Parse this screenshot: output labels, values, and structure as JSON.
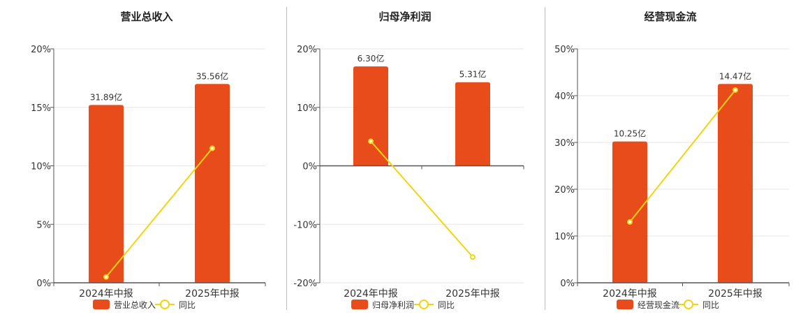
{
  "colors": {
    "bar": "#e84c1a",
    "line": "#f2d40f",
    "marker_fill": "#ffffff",
    "axis": "#555555",
    "grid": "#e6e6ee",
    "text": "#333333"
  },
  "chart_data": [
    {
      "type": "bar",
      "title": "营业总收入",
      "categories": [
        "2024年中报",
        "2025年中报"
      ],
      "ylim": [
        0,
        20
      ],
      "yticks": [
        0,
        5,
        10,
        15,
        20
      ],
      "ytick_labels": [
        "0%",
        "5%",
        "10%",
        "15%",
        "20%"
      ],
      "series": [
        {
          "name": "营业总收入",
          "type": "bar",
          "values": [
            15.2,
            17.0
          ],
          "labels": [
            "31.89亿",
            "35.56亿"
          ]
        },
        {
          "name": "同比",
          "type": "line",
          "values": [
            0.5,
            11.5
          ]
        }
      ],
      "legend": "bottom",
      "grid": true
    },
    {
      "type": "bar",
      "title": "归母净利润",
      "categories": [
        "2024年中报",
        "2025年中报"
      ],
      "ylim": [
        -20,
        20
      ],
      "yticks": [
        -20,
        -10,
        0,
        10,
        20
      ],
      "ytick_labels": [
        "-20%",
        "-10%",
        "0%",
        "10%",
        "20%"
      ],
      "series": [
        {
          "name": "归母净利润",
          "type": "bar",
          "values": [
            17.0,
            14.3
          ],
          "labels": [
            "6.30亿",
            "5.31亿"
          ]
        },
        {
          "name": "同比",
          "type": "line",
          "values": [
            4.2,
            -15.6
          ]
        }
      ],
      "legend": "bottom",
      "grid": true
    },
    {
      "type": "bar",
      "title": "经营现金流",
      "categories": [
        "2024年中报",
        "2025年中报"
      ],
      "ylim": [
        0,
        50
      ],
      "yticks": [
        0,
        10,
        20,
        30,
        40,
        50
      ],
      "ytick_labels": [
        "0%",
        "10%",
        "20%",
        "30%",
        "40%",
        "50%"
      ],
      "series": [
        {
          "name": "经营现金流",
          "type": "bar",
          "values": [
            30.2,
            42.5
          ],
          "labels": [
            "10.25亿",
            "14.47亿"
          ]
        },
        {
          "name": "同比",
          "type": "line",
          "values": [
            13.0,
            41.2
          ]
        }
      ],
      "legend": "bottom",
      "grid": true
    }
  ]
}
